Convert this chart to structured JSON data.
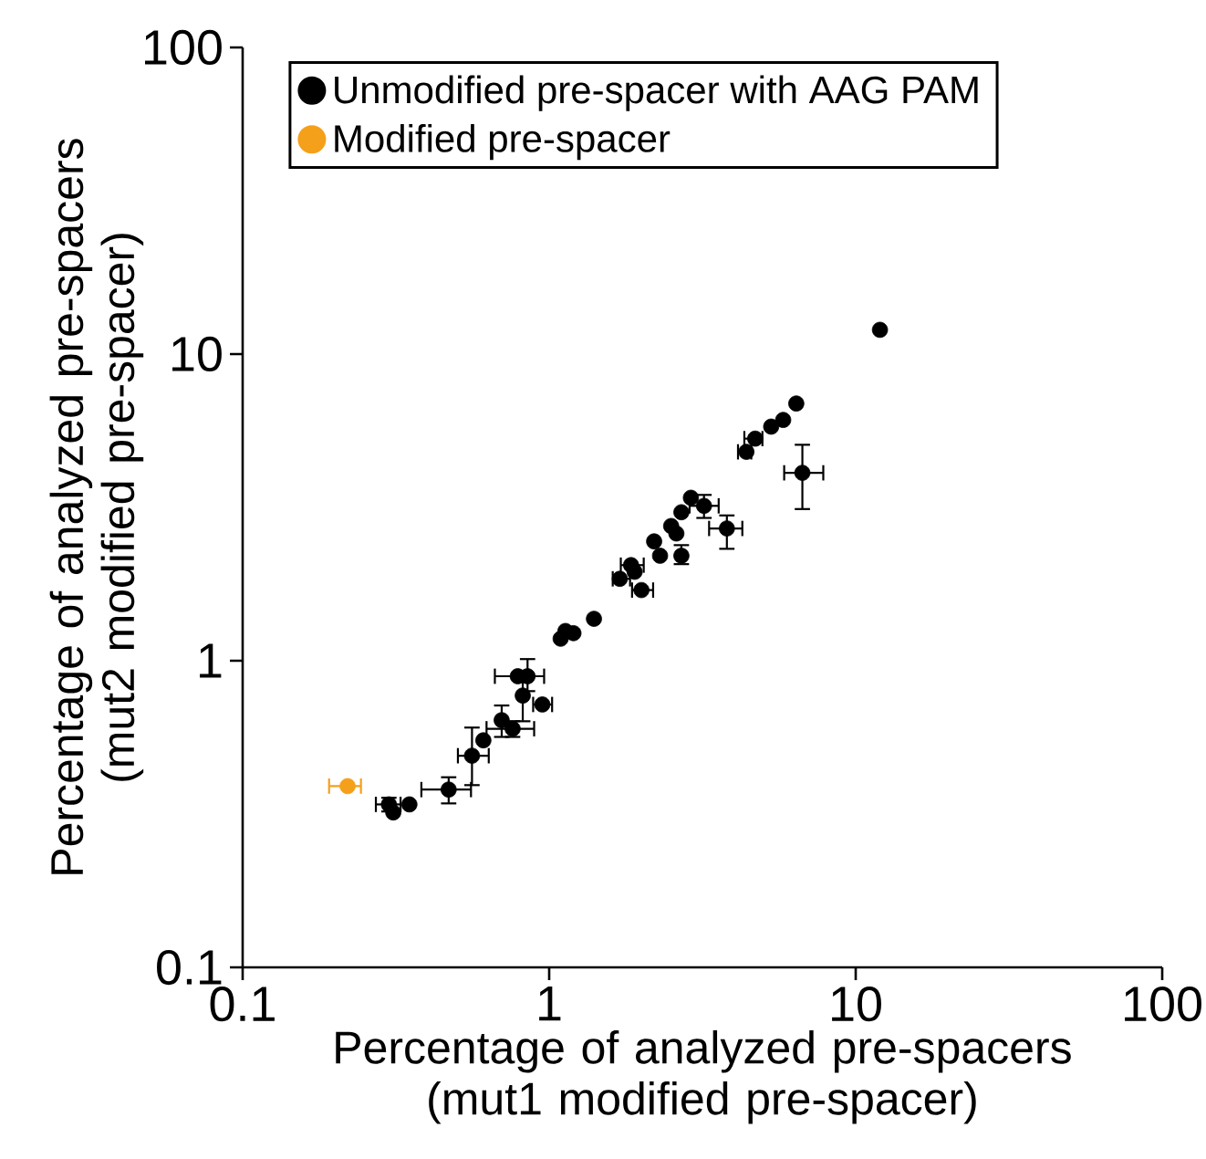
{
  "chart_data": {
    "type": "scatter",
    "xlabel": "Percentage of analyzed pre-spacers (mut1 modified pre-spacer)",
    "ylabel": "Percentage of analyzed pre-spacers (mut2 modified pre-spacer)",
    "log": "xy",
    "xlim": [
      0.1,
      100
    ],
    "ylim": [
      0.1,
      100
    ],
    "xticks": [
      0.1,
      1,
      10,
      100
    ],
    "yticks": [
      0.1,
      1,
      10,
      100
    ],
    "legend": "top left",
    "grid": false,
    "series": [
      {
        "name": "Unmodified pre-spacer with AAG PAM",
        "color": "#000000",
        "x": [
          12,
          6.4,
          5.8,
          5.3,
          4.7,
          4.4,
          6.7,
          3.8,
          3.2,
          2.9,
          2.7,
          2.5,
          2.6,
          2.2,
          2.3,
          2.7,
          1.85,
          1.7,
          1.9,
          2.0,
          1.4,
          1.13,
          1.2,
          1.09,
          0.79,
          0.85,
          0.82,
          0.95,
          0.7,
          0.76,
          0.61,
          0.56,
          0.47,
          0.35,
          0.3,
          0.31
        ],
        "values": [
          12,
          6.9,
          6.1,
          5.8,
          5.3,
          4.8,
          4.1,
          2.7,
          3.2,
          3.4,
          3.05,
          2.75,
          2.6,
          2.45,
          2.2,
          2.2,
          2.05,
          1.85,
          1.95,
          1.7,
          1.37,
          1.25,
          1.23,
          1.18,
          0.89,
          0.89,
          0.77,
          0.72,
          0.64,
          0.6,
          0.55,
          0.49,
          0.38,
          0.34,
          0.34,
          0.32
        ],
        "errors": [
          null,
          null,
          null,
          null,
          null,
          null,
          [
            3.1,
            5.1
          ],
          [
            2.3,
            3.0
          ],
          [
            2.9,
            3.5
          ],
          null,
          null,
          null,
          null,
          null,
          null,
          [
            2.05,
            2.4
          ],
          null,
          null,
          null,
          null,
          null,
          null,
          null,
          null,
          null,
          [
            0.79,
            1.02
          ],
          [
            0.63,
            0.92
          ],
          null,
          [
            0.56,
            0.72
          ],
          [
            0.56,
            0.64
          ],
          null,
          [
            0.39,
            0.61
          ],
          [
            0.34,
            0.42
          ],
          null,
          [
            0.32,
            0.36
          ],
          null
        ],
        "xerrors": [
          null,
          null,
          null,
          null,
          [
            4.3,
            5.0
          ],
          [
            4.1,
            4.6
          ],
          [
            5.8,
            7.9
          ],
          [
            3.3,
            4.3
          ],
          [
            2.85,
            3.6
          ],
          null,
          null,
          null,
          null,
          null,
          null,
          null,
          [
            1.7,
            2.05
          ],
          [
            1.6,
            1.85
          ],
          null,
          [
            1.85,
            2.2
          ],
          null,
          null,
          null,
          null,
          [
            0.66,
            0.97
          ],
          null,
          null,
          [
            0.88,
            1.03
          ],
          null,
          [
            0.62,
            0.9
          ],
          null,
          [
            0.5,
            0.64
          ],
          [
            0.38,
            0.56
          ],
          null,
          [
            0.27,
            0.33
          ],
          null
        ]
      },
      {
        "name": "Modified pre-spacer",
        "color": "#f5a01a",
        "x": [
          0.22
        ],
        "values": [
          0.39
        ],
        "xerrors": [
          [
            0.19,
            0.245
          ]
        ]
      }
    ]
  }
}
